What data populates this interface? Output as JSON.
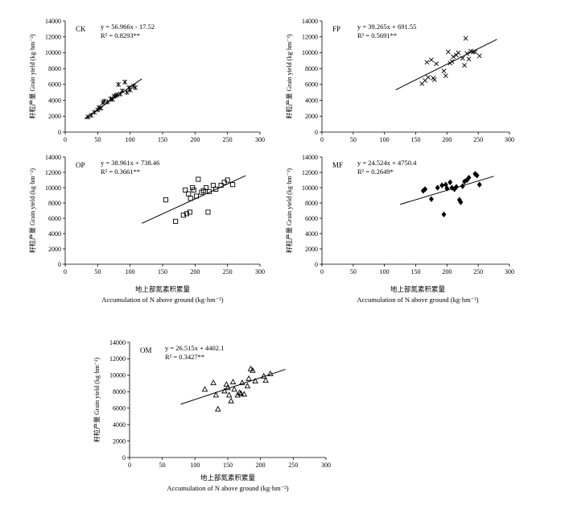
{
  "figure": {
    "y_label": "籽粒产量 Grain yield (kg·hm⁻²)",
    "x_label_cn": "地上部氮素积累量",
    "x_label_en": "Accumulation of N above ground (kg·hm⁻²)"
  },
  "chart_data": [
    {
      "type": "scatter",
      "panel": "CK",
      "marker": "star",
      "equation": "y = 56.966x - 17.52",
      "r2": "R² = 0.8293**",
      "fit": {
        "slope": 56.966,
        "intercept": -17.52,
        "x_range": [
          30,
          118
        ]
      },
      "xlim": [
        0,
        300
      ],
      "ylim": [
        0,
        14000
      ],
      "xticks": [
        0,
        50,
        100,
        150,
        200,
        250,
        300
      ],
      "yticks": [
        0,
        2000,
        4000,
        6000,
        8000,
        10000,
        12000,
        14000
      ],
      "points": [
        [
          35,
          1900
        ],
        [
          40,
          2100
        ],
        [
          45,
          2500
        ],
        [
          50,
          2800
        ],
        [
          52,
          3100
        ],
        [
          55,
          3000
        ],
        [
          58,
          3700
        ],
        [
          60,
          3900
        ],
        [
          65,
          3800
        ],
        [
          70,
          4200
        ],
        [
          73,
          4100
        ],
        [
          75,
          4500
        ],
        [
          78,
          4600
        ],
        [
          80,
          4700
        ],
        [
          82,
          6000
        ],
        [
          85,
          4800
        ],
        [
          88,
          5200
        ],
        [
          92,
          6300
        ],
        [
          95,
          5000
        ],
        [
          98,
          5600
        ],
        [
          100,
          5300
        ],
        [
          105,
          5800
        ],
        [
          108,
          5600
        ]
      ]
    },
    {
      "type": "scatter",
      "panel": "FP",
      "marker": "x",
      "equation": "y = 39.265x + 691.55",
      "r2": "R² = 0.5691**",
      "fit": {
        "slope": 39.265,
        "intercept": 691.55,
        "x_range": [
          118,
          280
        ]
      },
      "xlim": [
        0,
        300
      ],
      "ylim": [
        0,
        14000
      ],
      "xticks": [
        0,
        50,
        100,
        150,
        200,
        250,
        300
      ],
      "yticks": [
        0,
        2000,
        4000,
        6000,
        8000,
        10000,
        12000,
        14000
      ],
      "points": [
        [
          160,
          6100
        ],
        [
          165,
          6500
        ],
        [
          168,
          8800
        ],
        [
          170,
          6900
        ],
        [
          175,
          9100
        ],
        [
          178,
          6800
        ],
        [
          180,
          6600
        ],
        [
          183,
          8600
        ],
        [
          195,
          7700
        ],
        [
          198,
          7100
        ],
        [
          202,
          10100
        ],
        [
          205,
          8700
        ],
        [
          208,
          8900
        ],
        [
          210,
          9500
        ],
        [
          215,
          9700
        ],
        [
          218,
          10000
        ],
        [
          225,
          9300
        ],
        [
          228,
          8400
        ],
        [
          230,
          11800
        ],
        [
          232,
          9900
        ],
        [
          235,
          9200
        ],
        [
          238,
          10200
        ],
        [
          242,
          10100
        ],
        [
          245,
          10100
        ],
        [
          252,
          9600
        ]
      ]
    },
    {
      "type": "scatter",
      "panel": "OP",
      "marker": "square",
      "equation": "y = 38.961x + 738.46",
      "r2": "R² = 0.3661**",
      "fit": {
        "slope": 38.961,
        "intercept": 738.46,
        "x_range": [
          118,
          278
        ]
      },
      "xlim": [
        0,
        300
      ],
      "ylim": [
        0,
        14000
      ],
      "xticks": [
        0,
        50,
        100,
        150,
        200,
        250,
        300
      ],
      "yticks": [
        0,
        2000,
        4000,
        6000,
        8000,
        10000,
        12000,
        14000
      ],
      "points": [
        [
          155,
          8400
        ],
        [
          170,
          5600
        ],
        [
          182,
          6400
        ],
        [
          185,
          9700
        ],
        [
          187,
          6600
        ],
        [
          190,
          9200
        ],
        [
          192,
          6800
        ],
        [
          193,
          8600
        ],
        [
          196,
          10000
        ],
        [
          198,
          9700
        ],
        [
          202,
          8900
        ],
        [
          205,
          11100
        ],
        [
          210,
          9400
        ],
        [
          213,
          9600
        ],
        [
          217,
          10000
        ],
        [
          220,
          6800
        ],
        [
          222,
          9500
        ],
        [
          228,
          10300
        ],
        [
          232,
          9800
        ],
        [
          240,
          10300
        ],
        [
          245,
          10700
        ],
        [
          250,
          11000
        ],
        [
          258,
          10400
        ]
      ]
    },
    {
      "type": "scatter",
      "panel": "MF",
      "marker": "diamond",
      "equation": "y = 24.524x + 4750.4",
      "r2": "R² = 0.2649*",
      "fit": {
        "slope": 24.524,
        "intercept": 4750.4,
        "x_range": [
          125,
          275
        ]
      },
      "xlim": [
        0,
        300
      ],
      "ylim": [
        0,
        14000
      ],
      "xticks": [
        0,
        50,
        100,
        150,
        200,
        250,
        300
      ],
      "yticks": [
        0,
        2000,
        4000,
        6000,
        8000,
        10000,
        12000,
        14000
      ],
      "points": [
        [
          162,
          9600
        ],
        [
          165,
          9800
        ],
        [
          175,
          8500
        ],
        [
          185,
          10000
        ],
        [
          192,
          10300
        ],
        [
          195,
          6500
        ],
        [
          198,
          10400
        ],
        [
          200,
          9900
        ],
        [
          205,
          10700
        ],
        [
          208,
          10000
        ],
        [
          212,
          9800
        ],
        [
          215,
          10100
        ],
        [
          220,
          8400
        ],
        [
          222,
          8100
        ],
        [
          225,
          10200
        ],
        [
          228,
          10800
        ],
        [
          232,
          11000
        ],
        [
          235,
          11300
        ],
        [
          245,
          11800
        ],
        [
          248,
          11600
        ],
        [
          252,
          10400
        ]
      ]
    },
    {
      "type": "scatter",
      "panel": "OM",
      "marker": "triangle",
      "equation": "y = 26.515x + 4402.1",
      "r2": "R² = 0.3427**",
      "fit": {
        "slope": 26.515,
        "intercept": 4402.1,
        "x_range": [
          78,
          238
        ]
      },
      "xlim": [
        0,
        300
      ],
      "ylim": [
        0,
        14000
      ],
      "xticks": [
        0,
        50,
        100,
        150,
        200,
        250,
        300
      ],
      "yticks": [
        0,
        2000,
        4000,
        6000,
        8000,
        10000,
        12000,
        14000
      ],
      "points": [
        [
          115,
          8300
        ],
        [
          128,
          9100
        ],
        [
          132,
          7600
        ],
        [
          135,
          5900
        ],
        [
          145,
          8100
        ],
        [
          148,
          8900
        ],
        [
          150,
          8500
        ],
        [
          152,
          7600
        ],
        [
          155,
          6900
        ],
        [
          158,
          9200
        ],
        [
          160,
          8300
        ],
        [
          165,
          7600
        ],
        [
          168,
          7900
        ],
        [
          170,
          7800
        ],
        [
          172,
          9100
        ],
        [
          175,
          7700
        ],
        [
          180,
          8700
        ],
        [
          182,
          9600
        ],
        [
          185,
          10800
        ],
        [
          188,
          10600
        ],
        [
          192,
          9300
        ],
        [
          205,
          9900
        ],
        [
          208,
          9400
        ],
        [
          215,
          10200
        ]
      ]
    }
  ]
}
